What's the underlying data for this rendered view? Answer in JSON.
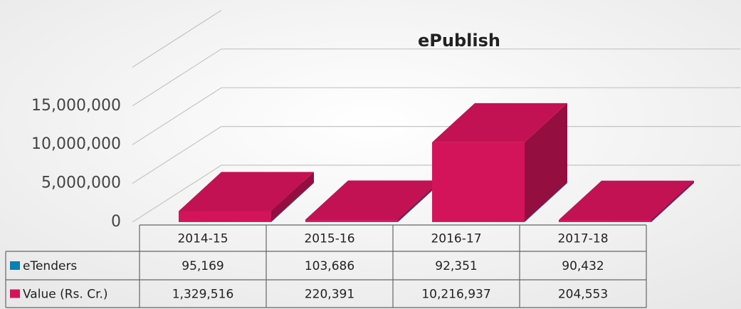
{
  "chart_data": {
    "type": "bar3d_stacked",
    "title": "ePublish",
    "categories": [
      "2014-15",
      "2015-16",
      "2016-17",
      "2017-18"
    ],
    "series": [
      {
        "name": "eTenders",
        "color": "#0a7fb5",
        "values": [
          95169,
          103686,
          92351,
          90432
        ],
        "value_labels": [
          "95,169",
          "103,686",
          "92,351",
          "90,432"
        ]
      },
      {
        "name": "Value (Rs. Cr.)",
        "color": "#d4145a",
        "values": [
          1329516,
          220391,
          10216937,
          204553
        ],
        "value_labels": [
          "1,329,516",
          "220,391",
          "10,216,937",
          "204,553"
        ]
      }
    ],
    "ylim": [
      0,
      20000000
    ],
    "yticks": [
      0,
      {
        "value": 5000000,
        "label": "5,000,000"
      },
      {
        "value": 10000000,
        "label": "10,000,000"
      },
      {
        "value": 15000000,
        "label": "15,000,000"
      }
    ],
    "grid": true
  }
}
